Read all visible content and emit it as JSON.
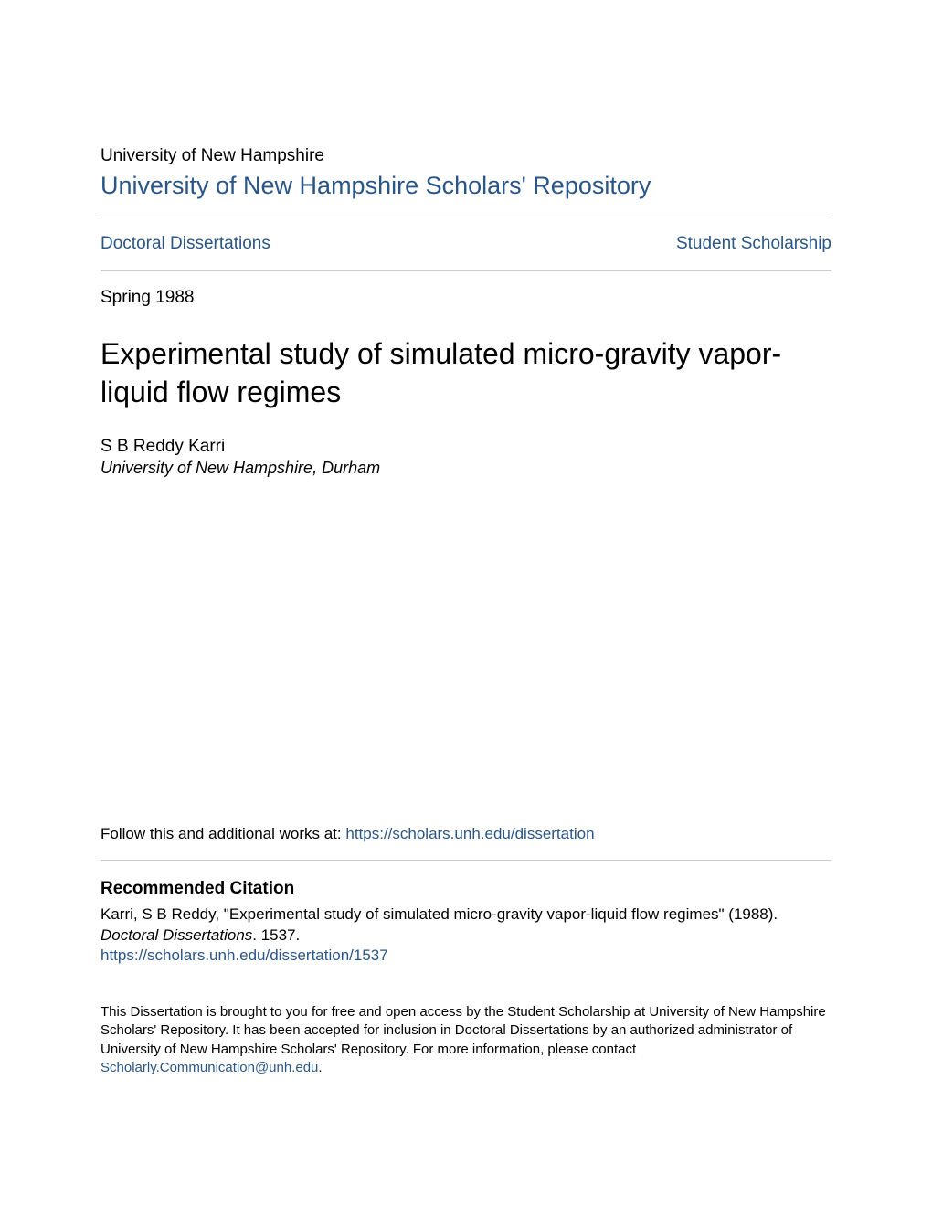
{
  "colors": {
    "link_color": "#2a5687",
    "text_color": "#000000",
    "divider_color": "#cccccc",
    "background_color": "#ffffff"
  },
  "typography": {
    "body_font": "Arial, Helvetica, sans-serif",
    "institution_fontsize": 19,
    "repository_fontsize": 27,
    "nav_fontsize": 19,
    "date_fontsize": 19,
    "title_fontsize": 32,
    "author_fontsize": 19,
    "affiliation_fontsize": 18,
    "follow_fontsize": 17,
    "citation_heading_fontsize": 19,
    "citation_text_fontsize": 17,
    "footer_fontsize": 15
  },
  "header": {
    "institution": "University of New Hampshire",
    "repository": "University of New Hampshire Scholars' Repository"
  },
  "nav": {
    "left_link": "Doctoral Dissertations",
    "right_link": "Student Scholarship"
  },
  "metadata": {
    "date": "Spring 1988",
    "title": "Experimental study of simulated micro-gravity vapor-liquid flow regimes",
    "author": "S B Reddy Karri",
    "affiliation": "University of New Hampshire, Durham"
  },
  "follow": {
    "prefix": "Follow this and additional works at: ",
    "link": "https://scholars.unh.edu/dissertation"
  },
  "citation": {
    "heading": "Recommended Citation",
    "line1": "Karri, S B Reddy, \"Experimental study of simulated micro-gravity vapor-liquid flow regimes\" (1988).",
    "line2_italic": "Doctoral Dissertations",
    "line2_rest": ". 1537.",
    "link": "https://scholars.unh.edu/dissertation/1537"
  },
  "footer": {
    "text": "This Dissertation is brought to you for free and open access by the Student Scholarship at University of New Hampshire Scholars' Repository. It has been accepted for inclusion in Doctoral Dissertations by an authorized administrator of University of New Hampshire Scholars' Repository. For more information, please contact ",
    "link_text": "Scholarly.Communication@unh.edu",
    "suffix": "."
  }
}
